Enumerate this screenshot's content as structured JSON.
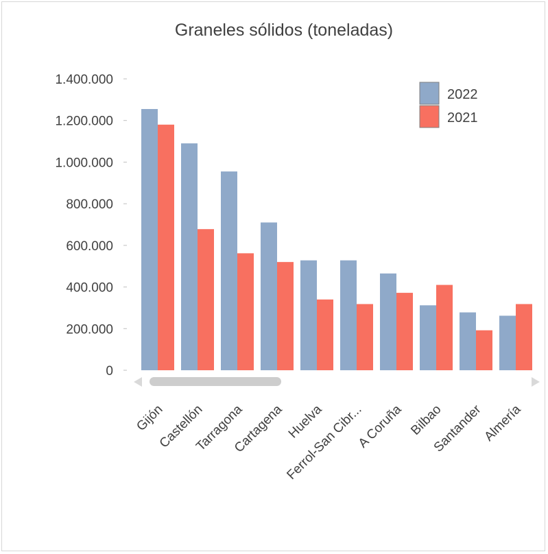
{
  "chart_data": {
    "type": "bar",
    "title": "Graneles sólidos (toneladas)",
    "xlabel": "",
    "ylabel": "",
    "categories": [
      "Gijón",
      "Castellón",
      "Tarragona",
      "Cartagena",
      "Huelva",
      "Ferrol-San Cibr...",
      "A Coruña",
      "Bilbao",
      "Santander",
      "Almería"
    ],
    "series": [
      {
        "name": "2022",
        "color": "#8fa9c9",
        "values": [
          1255000,
          1090000,
          955000,
          710000,
          528000,
          528000,
          465000,
          312000,
          278000,
          262000
        ]
      },
      {
        "name": "2021",
        "color": "#f87060",
        "values": [
          1180000,
          678000,
          562000,
          520000,
          340000,
          318000,
          372000,
          410000,
          192000,
          318000
        ]
      }
    ],
    "ylim": [
      0,
      1400000
    ],
    "yticks": [
      0,
      200000,
      400000,
      600000,
      800000,
      1000000,
      1200000,
      1400000
    ],
    "ytick_labels": [
      "0",
      "200.000",
      "400.000",
      "600.000",
      "800.000",
      "1.000.000",
      "1.200.000",
      "1.400.000"
    ],
    "grid": false,
    "legend_position": "top-right",
    "has_horizontal_scrollbar": true
  }
}
